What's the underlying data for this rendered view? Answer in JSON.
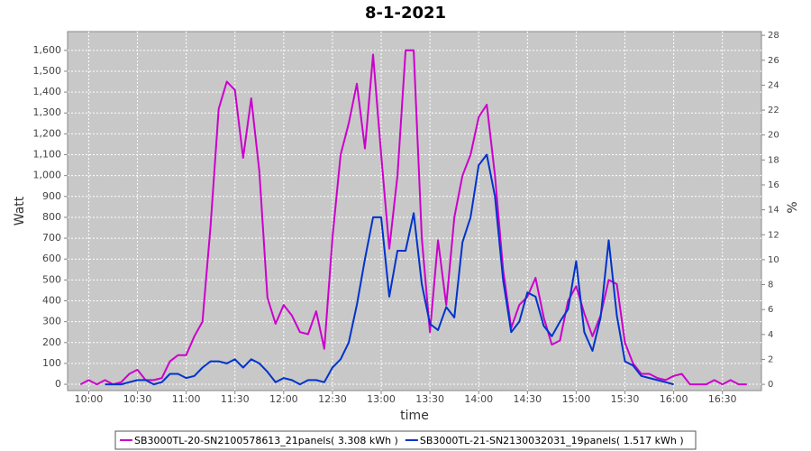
{
  "chart_data": {
    "type": "line",
    "title": "8-1-2021",
    "xlabel": "time",
    "ylabel": "Watt",
    "y2label": "%",
    "grid": true,
    "legend": "bottom",
    "xlim": [
      "09:47",
      "16:54"
    ],
    "xticks": [
      "10:00",
      "10:30",
      "11:00",
      "11:30",
      "12:00",
      "12:30",
      "13:00",
      "13:30",
      "14:00",
      "14:30",
      "15:00",
      "15:30",
      "16:00",
      "16:30"
    ],
    "ylim": [
      -30,
      1690
    ],
    "yticks": [
      0,
      100,
      200,
      300,
      400,
      500,
      600,
      700,
      800,
      900,
      {
        "value": 1000,
        "label": "1,000"
      },
      {
        "value": 1100,
        "label": "1,100"
      },
      {
        "value": 1200,
        "label": "1,200"
      },
      {
        "value": 1300,
        "label": "1,300"
      },
      {
        "value": 1400,
        "label": "1,400"
      },
      {
        "value": 1500,
        "label": "1,500"
      },
      {
        "value": 1600,
        "label": "1,600"
      }
    ],
    "y2lim": [
      -0.5,
      28.3
    ],
    "y2ticks": [
      0,
      2,
      4,
      6,
      8,
      10,
      12,
      14,
      16,
      18,
      20,
      22,
      24,
      26,
      28
    ],
    "x": [
      "09:55",
      "10:00",
      "10:05",
      "10:10",
      "10:15",
      "10:20",
      "10:25",
      "10:30",
      "10:35",
      "10:40",
      "10:45",
      "10:50",
      "10:55",
      "11:00",
      "11:05",
      "11:10",
      "11:15",
      "11:20",
      "11:25",
      "11:30",
      "11:35",
      "11:40",
      "11:45",
      "11:50",
      "11:55",
      "12:00",
      "12:05",
      "12:10",
      "12:15",
      "12:20",
      "12:25",
      "12:30",
      "12:35",
      "12:40",
      "12:45",
      "12:50",
      "12:55",
      "13:00",
      "13:05",
      "13:10",
      "13:15",
      "13:20",
      "13:25",
      "13:30",
      "13:35",
      "13:40",
      "13:45",
      "13:50",
      "13:55",
      "14:00",
      "14:05",
      "14:10",
      "14:15",
      "14:20",
      "14:25",
      "14:30",
      "14:35",
      "14:40",
      "14:45",
      "14:50",
      "14:55",
      "15:00",
      "15:05",
      "15:10",
      "15:15",
      "15:20",
      "15:25",
      "15:30",
      "15:35",
      "15:40",
      "15:45",
      "15:50",
      "15:55",
      "16:00",
      "16:05",
      "16:10",
      "16:15",
      "16:20",
      "16:25",
      "16:30",
      "16:35",
      "16:40",
      "16:45"
    ],
    "series": [
      {
        "name": "SB3000TL-20-SN2100578613_21panels( 3.308 kWh )",
        "color": "#cc00cc",
        "values": [
          0,
          20,
          0,
          20,
          0,
          10,
          50,
          70,
          20,
          20,
          30,
          110,
          140,
          140,
          230,
          300,
          760,
          1320,
          1450,
          1410,
          1085,
          1370,
          1020,
          415,
          290,
          380,
          330,
          250,
          240,
          350,
          170,
          700,
          1100,
          1250,
          1440,
          1130,
          1580,
          1100,
          650,
          1000,
          1600,
          1600,
          700,
          250,
          690,
          380,
          800,
          1000,
          1100,
          1280,
          1340,
          1000,
          550,
          270,
          380,
          420,
          510,
          320,
          190,
          210,
          400,
          470,
          340,
          230,
          330,
          500,
          480,
          200,
          100,
          50,
          50,
          30,
          20,
          40,
          50,
          0,
          0,
          0,
          20,
          0,
          20,
          0,
          0
        ]
      },
      {
        "name": "SB3000TL-21-SN2130032031_19panels( 1.517 kWh )",
        "color": "#0033cc",
        "values": [
          null,
          null,
          null,
          0,
          0,
          0,
          10,
          20,
          20,
          0,
          10,
          50,
          50,
          30,
          40,
          80,
          110,
          110,
          100,
          120,
          80,
          120,
          100,
          60,
          10,
          30,
          20,
          0,
          20,
          20,
          10,
          80,
          120,
          200,
          380,
          600,
          800,
          800,
          420,
          640,
          640,
          820,
          480,
          290,
          260,
          370,
          320,
          680,
          800,
          1050,
          1100,
          900,
          500,
          250,
          300,
          440,
          420,
          280,
          230,
          300,
          360,
          590,
          250,
          160,
          320,
          690,
          330,
          110,
          90,
          40,
          30,
          20,
          10,
          0,
          null,
          null,
          null,
          null,
          null,
          null,
          null,
          null,
          null
        ]
      }
    ]
  }
}
